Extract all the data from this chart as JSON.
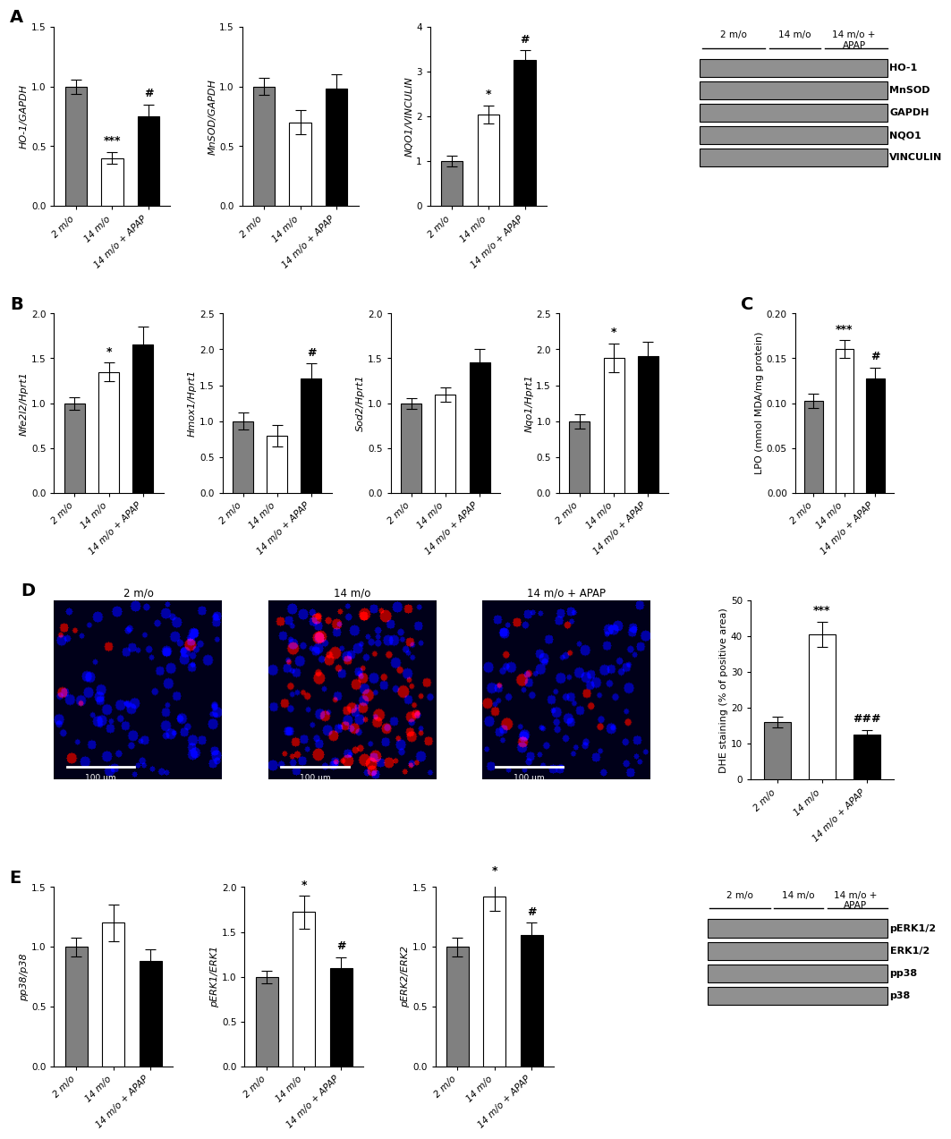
{
  "panel_A": {
    "ho1": {
      "values": [
        1.0,
        0.4,
        0.75
      ],
      "errors": [
        0.06,
        0.05,
        0.1
      ],
      "ylabel": "HO-1/GAPDH",
      "ylim": [
        0.0,
        1.5
      ],
      "yticks": [
        0.0,
        0.5,
        1.0,
        1.5
      ],
      "stars": [
        "",
        "***",
        "#"
      ]
    },
    "mnsod": {
      "values": [
        1.0,
        0.7,
        0.98
      ],
      "errors": [
        0.07,
        0.1,
        0.12
      ],
      "ylabel": "MnSOD/GAPDH",
      "ylim": [
        0.0,
        1.5
      ],
      "yticks": [
        0.0,
        0.5,
        1.0,
        1.5
      ],
      "stars": [
        "",
        "",
        ""
      ]
    },
    "nqo1": {
      "values": [
        1.0,
        2.05,
        3.25
      ],
      "errors": [
        0.12,
        0.2,
        0.22
      ],
      "ylabel": "NQO1/VINCULIN",
      "ylim": [
        0.0,
        4.0
      ],
      "yticks": [
        0,
        1,
        2,
        3,
        4
      ],
      "stars": [
        "",
        "*",
        "#"
      ]
    }
  },
  "panel_B": {
    "nfe2l2": {
      "values": [
        1.0,
        1.35,
        1.65
      ],
      "errors": [
        0.07,
        0.1,
        0.2
      ],
      "ylabel": "Nfe2l2/Hprt1",
      "ylim": [
        0.0,
        2.0
      ],
      "yticks": [
        0.0,
        0.5,
        1.0,
        1.5,
        2.0
      ],
      "stars": [
        "",
        "*",
        ""
      ]
    },
    "hmox1": {
      "values": [
        1.0,
        0.8,
        1.6
      ],
      "errors": [
        0.12,
        0.15,
        0.2
      ],
      "ylabel": "Hmox1/Hprt1",
      "ylim": [
        0.0,
        2.5
      ],
      "yticks": [
        0.0,
        0.5,
        1.0,
        1.5,
        2.0,
        2.5
      ],
      "stars": [
        "",
        "",
        "#"
      ]
    },
    "sod2": {
      "values": [
        1.0,
        1.1,
        1.45
      ],
      "errors": [
        0.06,
        0.08,
        0.15
      ],
      "ylabel": "Sod2/Hprt1",
      "ylim": [
        0.0,
        2.0
      ],
      "yticks": [
        0.0,
        0.5,
        1.0,
        1.5,
        2.0
      ],
      "stars": [
        "",
        "",
        ""
      ]
    },
    "nqo1": {
      "values": [
        1.0,
        1.88,
        1.9
      ],
      "errors": [
        0.1,
        0.2,
        0.2
      ],
      "ylabel": "Nqo1/Hprt1",
      "ylim": [
        0.0,
        2.5
      ],
      "yticks": [
        0.0,
        0.5,
        1.0,
        1.5,
        2.0,
        2.5
      ],
      "stars": [
        "",
        "*",
        ""
      ]
    }
  },
  "panel_C": {
    "values": [
      0.103,
      0.16,
      0.128
    ],
    "errors": [
      0.008,
      0.01,
      0.012
    ],
    "ylabel": "LPO (mmol MDA/mg protein)",
    "ylim": [
      0.0,
      0.2
    ],
    "yticks": [
      0.0,
      0.05,
      0.1,
      0.15,
      0.2
    ],
    "stars": [
      "",
      "***",
      "#"
    ]
  },
  "panel_D_bar": {
    "values": [
      16.0,
      40.5,
      12.5
    ],
    "errors": [
      1.5,
      3.5,
      1.2
    ],
    "ylabel": "DHE staining (% of positive area)",
    "ylim": [
      0,
      50
    ],
    "yticks": [
      0,
      10,
      20,
      30,
      40,
      50
    ],
    "stars": [
      "",
      "***",
      "###"
    ]
  },
  "panel_E": {
    "pp38": {
      "values": [
        1.0,
        1.2,
        0.88
      ],
      "errors": [
        0.08,
        0.15,
        0.1
      ],
      "ylabel": "pp38/p38",
      "ylim": [
        0.0,
        1.5
      ],
      "yticks": [
        0.0,
        0.5,
        1.0,
        1.5
      ],
      "stars": [
        "",
        "",
        ""
      ]
    },
    "perk1": {
      "values": [
        1.0,
        1.72,
        1.1
      ],
      "errors": [
        0.07,
        0.18,
        0.12
      ],
      "ylabel": "pERK1/ERK1",
      "ylim": [
        0.0,
        2.0
      ],
      "yticks": [
        0.0,
        0.5,
        1.0,
        1.5,
        2.0
      ],
      "stars": [
        "",
        "*",
        "#"
      ]
    },
    "perk2": {
      "values": [
        1.0,
        1.42,
        1.1
      ],
      "errors": [
        0.08,
        0.12,
        0.1
      ],
      "ylabel": "pERK2/ERK2",
      "ylim": [
        0.0,
        1.5
      ],
      "yticks": [
        0.0,
        0.5,
        1.0,
        1.5
      ],
      "stars": [
        "",
        "*",
        "#"
      ]
    }
  },
  "wb_A_labels": [
    "HO-1",
    "MnSOD",
    "GAPDH",
    "NQO1",
    "VINCULIN"
  ],
  "wb_E_labels": [
    "pERK1/2",
    "ERK1/2",
    "pp38",
    "p38"
  ],
  "wb_group_labels": [
    "2 m/o",
    "14 m/o",
    "14 m/o +\nAPAP"
  ],
  "microscopy_titles": [
    "2 m/o",
    "14 m/o",
    "14 m/o + APAP"
  ],
  "xticklabels": [
    "2 m/o",
    "14 m/o",
    "14 m/o + APAP"
  ],
  "bar_colors": [
    "#808080",
    "#ffffff",
    "#000000"
  ],
  "bar_edge_color": "#000000",
  "bar_width": 0.6,
  "capsize": 4,
  "error_color": "#000000",
  "star_fontsize": 9,
  "label_fontsize": 8,
  "tick_fontsize": 7.5,
  "panel_label_fontsize": 14
}
